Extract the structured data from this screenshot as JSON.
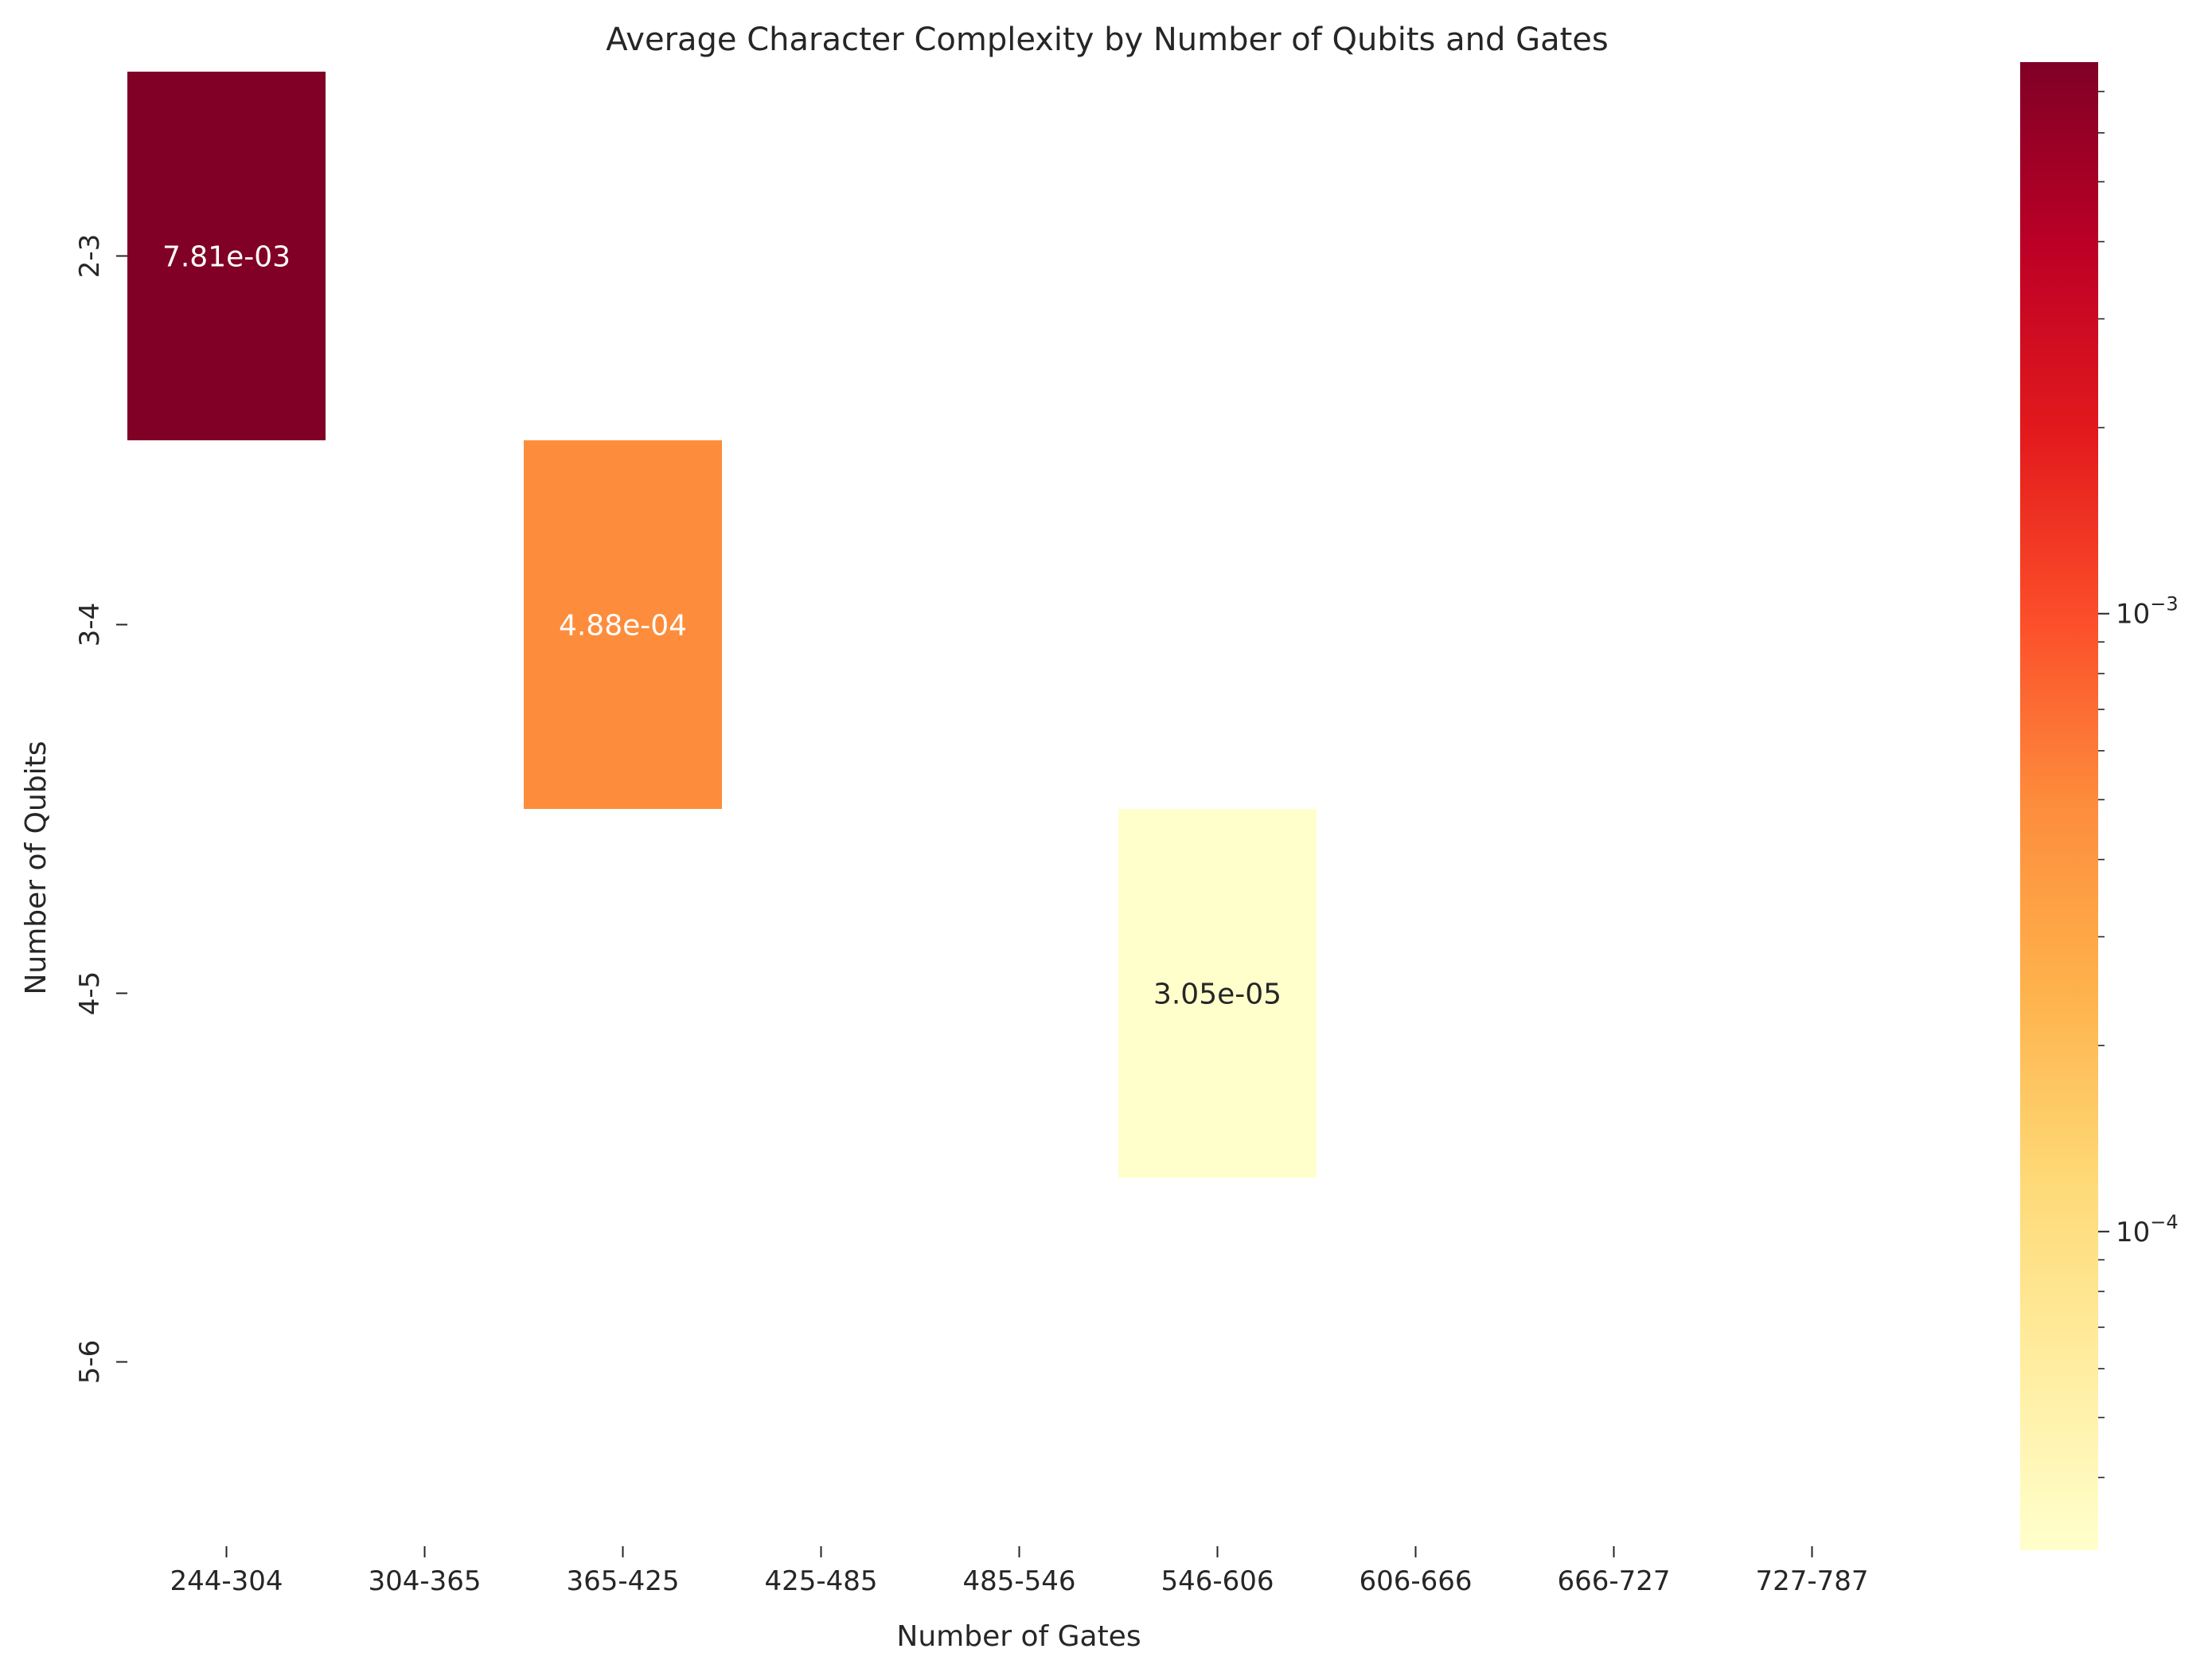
{
  "chart_data": {
    "type": "heatmap",
    "title": "Average Character Complexity by Number of Qubits and Gates",
    "xlabel": "Number of Gates",
    "ylabel": "Number of Qubits",
    "x_categories": [
      "244-304",
      "304-365",
      "365-425",
      "425-485",
      "485-546",
      "546-606",
      "606-666",
      "666-727",
      "727-787"
    ],
    "y_categories": [
      "2-3",
      "3-4",
      "4-5",
      "5-6"
    ],
    "cells": [
      {
        "x": "244-304",
        "y": "2-3",
        "value": 0.00781,
        "label": "7.81e-03"
      },
      {
        "x": "365-425",
        "y": "3-4",
        "value": 0.000488,
        "label": "4.88e-04"
      },
      {
        "x": "546-606",
        "y": "4-5",
        "value": 3.05e-05,
        "label": "3.05e-05"
      }
    ],
    "colorbar": {
      "scale": "log",
      "colormap": "YlOrRd",
      "range": [
        3.05e-05,
        0.00781
      ],
      "major_ticks": [
        {
          "value": 0.001,
          "base": "10",
          "exp": "−3"
        },
        {
          "value": 0.0001,
          "base": "10",
          "exp": "−4"
        }
      ]
    },
    "grid": false
  }
}
